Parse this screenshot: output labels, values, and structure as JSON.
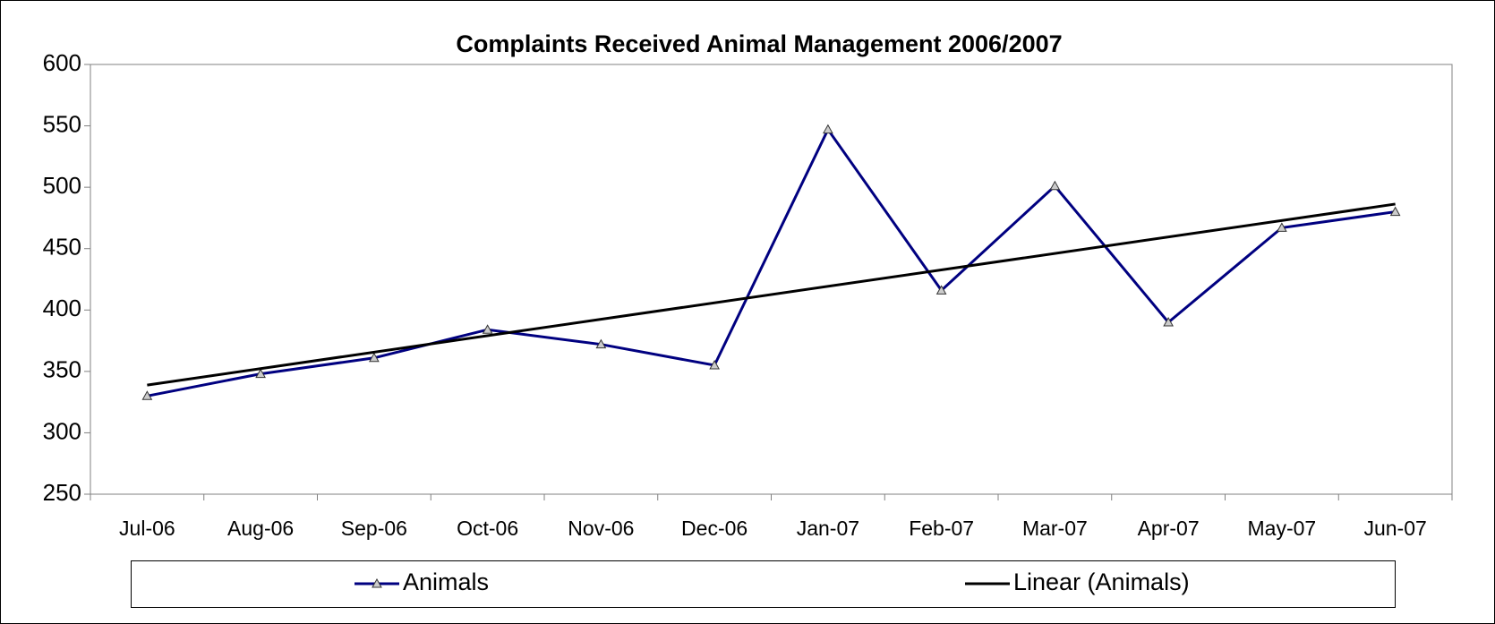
{
  "chart_data": {
    "type": "line",
    "title": "Complaints Received Animal Management 2006/2007",
    "categories": [
      "Jul-06",
      "Aug-06",
      "Sep-06",
      "Oct-06",
      "Nov-06",
      "Dec-06",
      "Jan-07",
      "Feb-07",
      "Mar-07",
      "Apr-07",
      "May-07",
      "Jun-07"
    ],
    "series": [
      {
        "name": "Animals",
        "color": "#000080",
        "values": [
          330,
          348,
          361,
          384,
          372,
          355,
          547,
          416,
          501,
          390,
          467,
          480
        ]
      },
      {
        "name": "Linear (Animals)",
        "color": "#000000",
        "trendline": "linear",
        "source": 0
      }
    ],
    "ylim": [
      250,
      600
    ],
    "yticks": [
      250,
      300,
      350,
      400,
      450,
      500,
      550,
      600
    ],
    "grid": false,
    "legend": "bottom"
  }
}
